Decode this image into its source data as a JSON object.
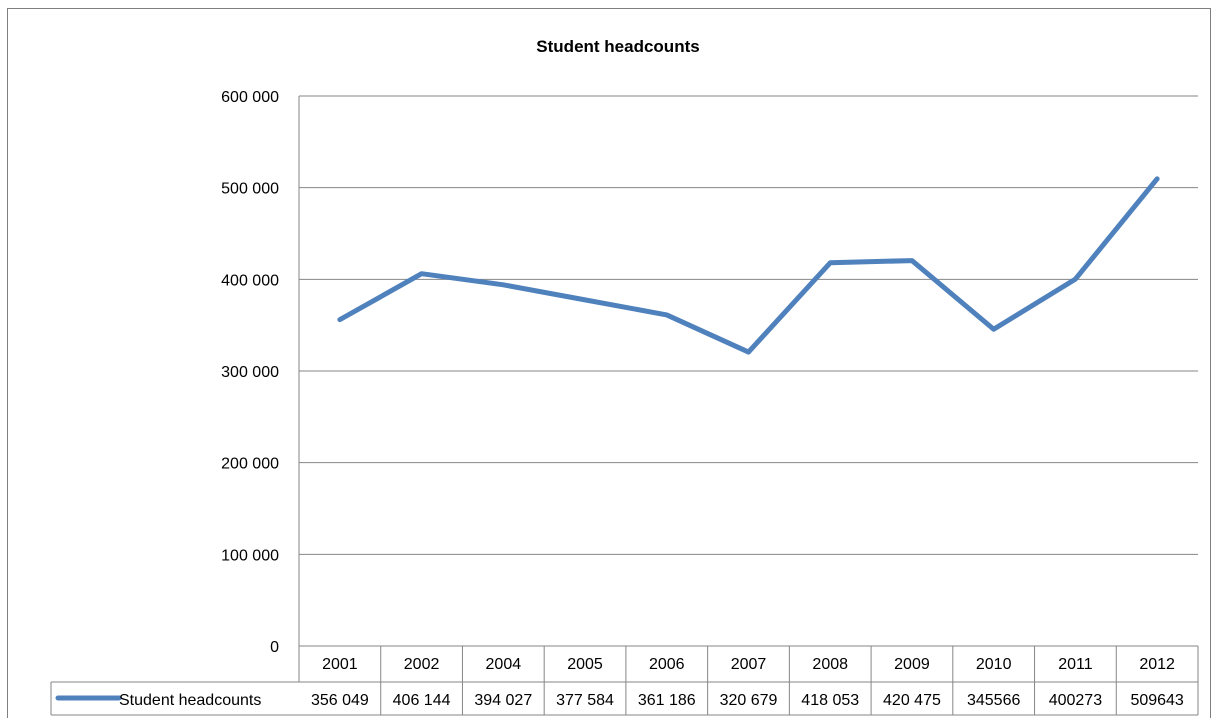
{
  "chart_data": {
    "type": "line",
    "title": "Student headcounts",
    "xlabel": "",
    "ylabel": "",
    "categories": [
      "2001",
      "2002",
      "2004",
      "2005",
      "2006",
      "2007",
      "2008",
      "2009",
      "2010",
      "2011",
      "2012"
    ],
    "ylim": [
      0,
      600000
    ],
    "y_ticks": [
      "0",
      "100 000",
      "200 000",
      "300 000",
      "400 000",
      "500 000",
      "600 000"
    ],
    "grid": true,
    "legend": "data-table",
    "series": [
      {
        "name": "Student headcounts",
        "color": "#4f81bd",
        "values": [
          356049,
          406144,
          394027,
          377584,
          361186,
          320679,
          418053,
          420475,
          345566,
          400273,
          509643
        ],
        "value_labels": [
          "356 049",
          "406 144",
          "394 027",
          "377 584",
          "361 186",
          "320 679",
          "418 053",
          "420 475",
          "345566",
          "400273",
          "509643"
        ]
      }
    ]
  }
}
